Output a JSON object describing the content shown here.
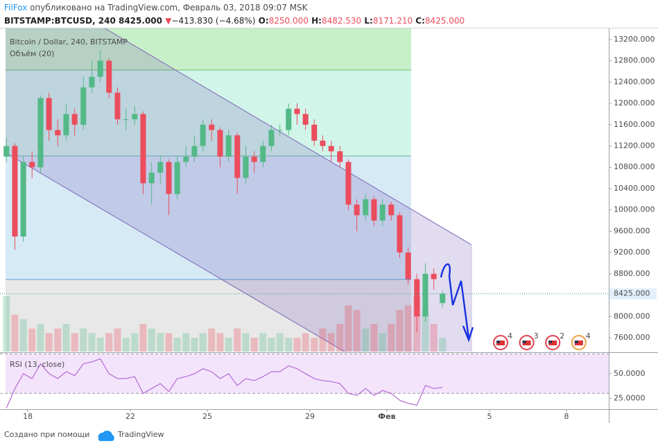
{
  "header": {
    "author": "FilFox",
    "published": "опубликовано на TradingView.com, Февраль 03, 2018 09:07 MSK",
    "symbol": "BITSTAMP:BTCUSD, 240",
    "last": "8425.000",
    "arrow": "▼",
    "change": "−413.830 (−4.68%)",
    "ohlc": [
      {
        "label": "O:",
        "value": "8250.000"
      },
      {
        "label": "H:",
        "value": "8482.530"
      },
      {
        "label": "L:",
        "value": "8171.210"
      },
      {
        "label": "C:",
        "value": "8425.000"
      }
    ]
  },
  "chart_data": {
    "type": "candlestick",
    "title": "Bitcoin / Dollar, 240, BITSTAMP",
    "up_color": "#53b987",
    "down_color": "#eb4d5c",
    "x": [
      17.17,
      17.5,
      17.83,
      18.17,
      18.5,
      18.83,
      19.17,
      19.5,
      19.83,
      20.17,
      20.5,
      20.83,
      21.17,
      21.5,
      21.83,
      22.17,
      22.5,
      22.83,
      23.17,
      23.5,
      23.83,
      24.17,
      24.5,
      24.83,
      25.17,
      25.5,
      25.83,
      26.17,
      26.5,
      26.83,
      27.17,
      27.5,
      27.83,
      28.17,
      28.5,
      28.83,
      29.17,
      29.5,
      29.83,
      30.17,
      30.5,
      30.83,
      31.17,
      31.5,
      31.83,
      32.17,
      32.5,
      32.83,
      33.17,
      33.5,
      33.83,
      34.17
    ],
    "open": [
      11000,
      11200,
      9500,
      10900,
      10800,
      12100,
      11500,
      11400,
      11800,
      11600,
      12300,
      12500,
      12800,
      12200,
      11700,
      11700,
      11800,
      10500,
      10700,
      10900,
      10300,
      10900,
      11000,
      11200,
      11600,
      11500,
      11000,
      11400,
      10600,
      11000,
      10900,
      11200,
      11500,
      11500,
      11900,
      11800,
      11600,
      11300,
      11200,
      11100,
      10900,
      10100,
      9900,
      10200,
      9800,
      10100,
      9900,
      9200,
      8700,
      8000,
      8800,
      8250
    ],
    "high": [
      11350,
      11250,
      11000,
      11100,
      12150,
      12200,
      11700,
      12000,
      11900,
      12500,
      12800,
      13000,
      12850,
      12300,
      11900,
      11950,
      11850,
      10900,
      11000,
      10950,
      11000,
      11200,
      11400,
      11700,
      11700,
      11550,
      11500,
      11450,
      11200,
      11100,
      11300,
      11600,
      11600,
      12000,
      12000,
      11900,
      11700,
      11400,
      11300,
      11200,
      10950,
      10200,
      10300,
      10250,
      10200,
      10150,
      9950,
      9300,
      8800,
      9000,
      8900,
      8482.53
    ],
    "low": [
      10900,
      9250,
      9400,
      10600,
      10700,
      11300,
      11200,
      11300,
      11400,
      11500,
      12200,
      12400,
      12100,
      11600,
      11500,
      11600,
      10300,
      10100,
      10500,
      9900,
      10200,
      10800,
      10900,
      11100,
      11300,
      10800,
      10900,
      10300,
      10500,
      10700,
      10800,
      11100,
      11400,
      11400,
      11600,
      11500,
      11200,
      11100,
      10900,
      10800,
      10000,
      9600,
      9800,
      9700,
      9700,
      9800,
      9100,
      8600,
      7700,
      7900,
      8500,
      8171.21
    ],
    "close": [
      11200,
      9500,
      10900,
      10800,
      12100,
      11500,
      11400,
      11800,
      11600,
      12300,
      12500,
      12800,
      12200,
      11700,
      11700,
      11800,
      10500,
      10700,
      10900,
      10300,
      10900,
      11000,
      11200,
      11600,
      11500,
      11000,
      11400,
      10600,
      11000,
      10900,
      11200,
      11500,
      11500,
      11900,
      11800,
      11600,
      11300,
      11200,
      11100,
      10900,
      10100,
      9900,
      10200,
      9800,
      10100,
      9900,
      9200,
      8700,
      8000,
      8800,
      8700,
      8425
    ],
    "xlim": [
      16.92,
      40.65
    ],
    "xticks": [
      18,
      22,
      25,
      29,
      {
        "value": 32,
        "label": "Фев"
      },
      {
        "value": 36,
        "label": "5"
      },
      {
        "value": 39,
        "label": "8"
      }
    ],
    "ylim": [
      7340,
      13420
    ],
    "yticks": [
      {
        "value": 13200,
        "label": "13200.000"
      },
      {
        "value": 12800,
        "label": "12800.000"
      },
      {
        "value": 12400,
        "label": "12400.000"
      },
      {
        "value": 12000,
        "label": "12000.000"
      },
      {
        "value": 11600,
        "label": "11600.000"
      },
      {
        "value": 11200,
        "label": "11200.000"
      },
      {
        "value": 10800,
        "label": "10800.000"
      },
      {
        "value": 10400,
        "label": "10400.000"
      },
      {
        "value": 10000,
        "label": "10000.000"
      },
      {
        "value": 9600,
        "label": "9600.000"
      },
      {
        "value": 9200,
        "label": "9200.000"
      },
      {
        "value": 8800,
        "label": "8800.000"
      },
      {
        "value": 8400,
        "label": "8400.000"
      },
      {
        "value": 8000,
        "label": "8000.000"
      },
      {
        "value": 7600,
        "label": "7600.000"
      }
    ],
    "last_price": {
      "value": 8425,
      "label": "8425.000"
    },
    "volume": {
      "name": "Объём (20)",
      "values": [
        60,
        40,
        35,
        25,
        30,
        20,
        25,
        30,
        20,
        25,
        20,
        15,
        20,
        25,
        15,
        20,
        30,
        25,
        20,
        20,
        15,
        20,
        15,
        20,
        25,
        20,
        15,
        25,
        20,
        15,
        20,
        15,
        20,
        15,
        15,
        20,
        15,
        25,
        20,
        30,
        50,
        45,
        25,
        30,
        20,
        30,
        45,
        50,
        60,
        45,
        30,
        15
      ]
    },
    "rsi": {
      "name": "RSI (13, close)",
      "color": "#b36bd4",
      "ylim": [
        14,
        71
      ],
      "yticks": [
        {
          "value": 50,
          "label": "50.0000"
        },
        {
          "value": 25,
          "label": "25.0000"
        }
      ],
      "levels": [
        70,
        30
      ],
      "values": [
        15,
        35,
        50,
        45,
        60,
        50,
        45,
        52,
        48,
        60,
        62,
        65,
        50,
        45,
        45,
        47,
        30,
        35,
        40,
        32,
        45,
        47,
        50,
        55,
        52,
        45,
        50,
        38,
        45,
        43,
        47,
        52,
        52,
        58,
        55,
        50,
        45,
        43,
        42,
        40,
        30,
        28,
        35,
        28,
        33,
        30,
        23,
        20,
        18,
        38,
        35,
        36
      ]
    },
    "events": [
      4,
      3,
      2,
      4
    ]
  },
  "footer": {
    "made_with": "Создано при помощи",
    "brand": "TradingView"
  }
}
